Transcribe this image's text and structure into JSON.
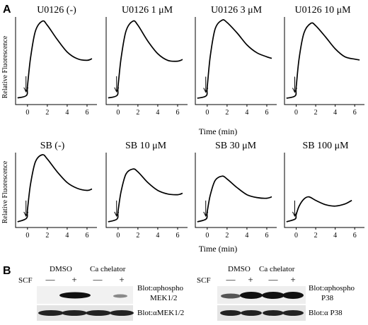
{
  "panel_a": {
    "letter": "A",
    "ylabel": "Relative Fluorescence",
    "xlabel": "Time (min)",
    "row1_titles": [
      "U0126  (-)",
      "U0126  1 μM",
      "U0126  3 μM",
      "U0126  10 μM"
    ],
    "row2_titles": [
      "SB  (-)",
      "SB  10 μM",
      "SB  30 μM",
      "SB  100 μM"
    ]
  },
  "panel_b": {
    "letter": "B",
    "scf_label": "SCF",
    "left": {
      "dmso": "DMSO",
      "chelator": "Ca chelator",
      "signs": [
        "—",
        "+",
        "—",
        "+"
      ],
      "blot1_line1": "Blot:αphospho",
      "blot1_line2": "MEK1/2",
      "blot2": "Blot:αMEK1/2"
    },
    "right": {
      "dmso": "DMSO",
      "chelator": "Ca chelator",
      "signs": [
        "—",
        "+",
        "—",
        "+"
      ],
      "blot1_line1": "Blot:αphospho",
      "blot1_line2": "P38",
      "blot2": "Blot:α P38"
    }
  },
  "chart_data": [
    {
      "type": "line",
      "title": "U0126  (-)",
      "x": [
        -1,
        -0.1,
        0,
        0.3,
        0.8,
        1.5,
        2,
        3,
        4,
        5,
        6,
        6.5
      ],
      "y": [
        0.08,
        0.11,
        0.22,
        0.55,
        0.88,
        1.0,
        0.95,
        0.78,
        0.63,
        0.55,
        0.53,
        0.55
      ],
      "xticks": [
        0,
        2,
        4,
        6
      ],
      "xlim": [
        -1.2,
        7
      ],
      "ylim": [
        0,
        1.05
      ],
      "xlabel": "",
      "ylabel": "Relative Fluorescence"
    },
    {
      "type": "line",
      "title": "U0126  1 μM",
      "x": [
        -1,
        -0.1,
        0,
        0.3,
        0.8,
        1.5,
        2,
        3,
        4,
        5,
        6,
        6.5
      ],
      "y": [
        0.08,
        0.11,
        0.22,
        0.55,
        0.88,
        1.0,
        0.95,
        0.76,
        0.61,
        0.53,
        0.52,
        0.54
      ],
      "xticks": [
        0,
        2,
        4,
        6
      ],
      "xlim": [
        -1.2,
        7
      ],
      "ylim": [
        0,
        1.05
      ],
      "xlabel": "",
      "ylabel": ""
    },
    {
      "type": "line",
      "title": "U0126  3 μM",
      "x": [
        -1,
        -0.1,
        0,
        0.3,
        0.8,
        1.5,
        2,
        3,
        4,
        5,
        6,
        6.5
      ],
      "y": [
        0.08,
        0.11,
        0.22,
        0.6,
        0.95,
        1.06,
        1.03,
        0.9,
        0.75,
        0.65,
        0.6,
        0.58
      ],
      "xticks": [
        0,
        2,
        4,
        6
      ],
      "xlim": [
        -1.2,
        7
      ],
      "ylim": [
        0,
        1.1
      ],
      "xlabel": "Time (min)",
      "ylabel": ""
    },
    {
      "type": "line",
      "title": "U0126  10 μM",
      "x": [
        -1,
        -0.1,
        0,
        0.3,
        0.8,
        1.5,
        2,
        3,
        4,
        5,
        6,
        6.5
      ],
      "y": [
        0.08,
        0.11,
        0.22,
        0.58,
        0.9,
        1.02,
        0.99,
        0.85,
        0.7,
        0.6,
        0.57,
        0.56
      ],
      "xticks": [
        0,
        2,
        4,
        6
      ],
      "xlim": [
        -1.2,
        7
      ],
      "ylim": [
        0,
        1.1
      ],
      "xlabel": "",
      "ylabel": ""
    },
    {
      "type": "line",
      "title": "SB  (-)",
      "x": [
        -1,
        -0.1,
        0,
        0.3,
        0.8,
        1.5,
        2,
        3,
        4,
        5,
        6,
        6.5
      ],
      "y": [
        0.08,
        0.13,
        0.25,
        0.6,
        0.92,
        1.02,
        0.96,
        0.78,
        0.63,
        0.55,
        0.52,
        0.54
      ],
      "xticks": [
        0,
        2,
        4,
        6
      ],
      "xlim": [
        -1.2,
        7
      ],
      "ylim": [
        0,
        1.05
      ],
      "xlabel": "",
      "ylabel": "Relative Fluorescence"
    },
    {
      "type": "line",
      "title": "SB  10 μM",
      "x": [
        -1,
        -0.1,
        0,
        0.3,
        0.8,
        1.5,
        2,
        3,
        4,
        5,
        6,
        6.5
      ],
      "y": [
        0.08,
        0.12,
        0.23,
        0.5,
        0.75,
        0.82,
        0.78,
        0.63,
        0.52,
        0.47,
        0.46,
        0.48
      ],
      "xticks": [
        0,
        2,
        4,
        6
      ],
      "xlim": [
        -1.2,
        7
      ],
      "ylim": [
        0,
        1.05
      ],
      "xlabel": "",
      "ylabel": ""
    },
    {
      "type": "line",
      "title": "SB  30 μM",
      "x": [
        -1,
        -0.1,
        0,
        0.3,
        0.8,
        1.5,
        2,
        3,
        4,
        5,
        6,
        6.5
      ],
      "y": [
        0.08,
        0.12,
        0.22,
        0.45,
        0.66,
        0.72,
        0.68,
        0.56,
        0.46,
        0.42,
        0.41,
        0.43
      ],
      "xticks": [
        0,
        2,
        4,
        6
      ],
      "xlim": [
        -1.2,
        7
      ],
      "ylim": [
        0,
        1.05
      ],
      "xlabel": "Time (min)",
      "ylabel": ""
    },
    {
      "type": "line",
      "title": "SB  100 μM",
      "x": [
        -1,
        -0.1,
        0,
        0.3,
        0.8,
        1.3,
        2,
        3,
        4,
        5,
        5.7
      ],
      "y": [
        0.08,
        0.12,
        0.18,
        0.3,
        0.4,
        0.43,
        0.38,
        0.32,
        0.3,
        0.33,
        0.38
      ],
      "xticks": [
        0,
        2,
        4,
        6
      ],
      "xlim": [
        -1.2,
        7
      ],
      "ylim": [
        0,
        1.05
      ],
      "xlabel": "",
      "ylabel": ""
    }
  ]
}
